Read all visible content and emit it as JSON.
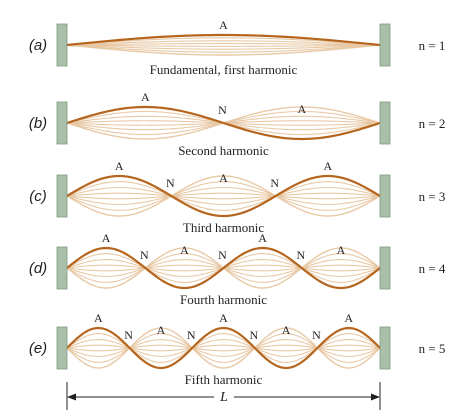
{
  "colors": {
    "string_dark": "#b5651d",
    "string_light": "#e8c9a6",
    "post_fill": "#a9bfa8",
    "post_stroke": "#7f9a80",
    "text": "#231f20"
  },
  "diagram": {
    "rows": [
      {
        "label": "(a)",
        "n_text": "n = 1",
        "caption": "Fundamental, first harmonic",
        "n": 1,
        "antinode_labels": [
          "A"
        ],
        "node_labels": []
      },
      {
        "label": "(b)",
        "n_text": "n = 2",
        "caption": "Second harmonic",
        "n": 2,
        "antinode_labels": [
          "A",
          "A"
        ],
        "node_labels": [
          "N"
        ]
      },
      {
        "label": "(c)",
        "n_text": "n = 3",
        "caption": "Third harmonic",
        "n": 3,
        "antinode_labels": [
          "A",
          "A",
          "A"
        ],
        "node_labels": [
          "N",
          "N"
        ]
      },
      {
        "label": "(d)",
        "n_text": "n = 4",
        "caption": "Fourth harmonic",
        "n": 4,
        "antinode_labels": [
          "A",
          "A",
          "A",
          "A"
        ],
        "node_labels": [
          "N",
          "N",
          "N"
        ]
      },
      {
        "label": "(e)",
        "n_text": "n = 5",
        "caption": "Fifth harmonic",
        "n": 5,
        "antinode_labels": [
          "A",
          "A",
          "A",
          "A",
          "A"
        ],
        "node_labels": [
          "N",
          "N",
          "N",
          "N"
        ]
      }
    ],
    "length_label": "L"
  }
}
